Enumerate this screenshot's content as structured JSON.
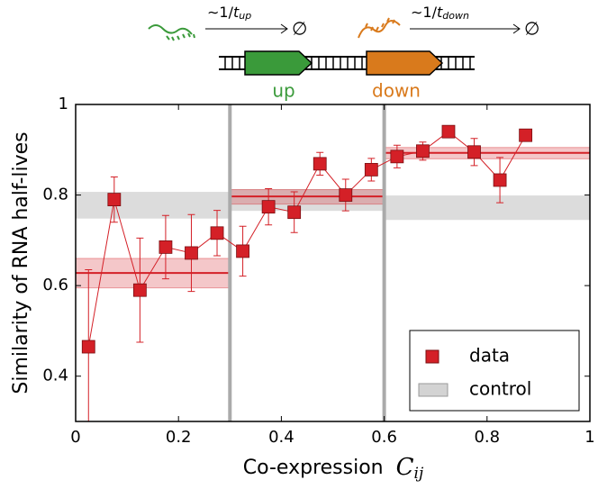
{
  "diagram": {
    "rate_up": {
      "prefix": "∼1/",
      "var": "t",
      "sub": "up"
    },
    "sink_up": "∅",
    "rate_down": {
      "prefix": "∼1/",
      "var": "t",
      "sub": "down"
    },
    "sink_down": "∅",
    "gene_up": "up",
    "gene_down": "down"
  },
  "chart_data": {
    "type": "errorbar",
    "ylabel": "Similarity of RNA half-lives",
    "xlabel": "Co-expression",
    "xlabel_symbol": {
      "base": "C",
      "sub": "ij"
    },
    "xlim": [
      0,
      1
    ],
    "ylim": [
      0.3,
      1
    ],
    "xticks": [
      0,
      0.2,
      0.4,
      0.6,
      0.8,
      1
    ],
    "yticks": [
      0.4,
      0.6,
      0.8,
      1
    ],
    "x": [
      0.025,
      0.075,
      0.125,
      0.175,
      0.225,
      0.275,
      0.325,
      0.375,
      0.425,
      0.475,
      0.525,
      0.575,
      0.625,
      0.675,
      0.725,
      0.775,
      0.825,
      0.875
    ],
    "series": [
      {
        "name": "data",
        "color": "#d42027",
        "values": [
          0.465,
          0.79,
          0.59,
          0.685,
          0.672,
          0.716,
          0.676,
          0.774,
          0.762,
          0.869,
          0.8,
          0.856,
          0.885,
          0.897,
          0.94,
          0.895,
          0.833,
          0.932
        ],
        "errors": [
          0.17,
          0.05,
          0.115,
          0.07,
          0.085,
          0.05,
          0.055,
          0.04,
          0.045,
          0.025,
          0.035,
          0.025,
          0.025,
          0.02,
          0.01,
          0.03,
          0.05,
          0.01
        ]
      }
    ],
    "segment_means": [
      {
        "x": [
          0,
          0.3
        ],
        "mean": 0.628,
        "low": 0.595,
        "high": 0.66
      },
      {
        "x": [
          0.3,
          0.6
        ],
        "mean": 0.797,
        "low": 0.78,
        "high": 0.812
      },
      {
        "x": [
          0.6,
          1
        ],
        "mean": 0.893,
        "low": 0.88,
        "high": 0.905
      }
    ],
    "control": {
      "name": "control",
      "color": "#d3d3d3",
      "bands": [
        {
          "x": [
            0,
            0.3
          ],
          "low": 0.748,
          "high": 0.807
        },
        {
          "x": [
            0.3,
            0.6
          ],
          "low": 0.765,
          "high": 0.813
        },
        {
          "x": [
            0.6,
            1
          ],
          "low": 0.745,
          "high": 0.799
        }
      ]
    },
    "dividers": [
      0.3,
      0.6
    ],
    "legend": "lower right"
  }
}
